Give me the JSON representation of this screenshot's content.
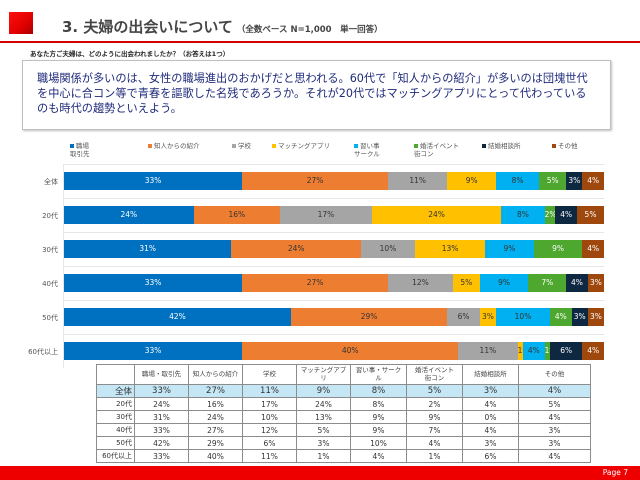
{
  "header": {
    "title": "3. 夫婦の出会いについて",
    "subtitle": "（全数ベース N=1,000　単一回答）",
    "question": "あなた方ご夫婦は、どのように出会われましたか？（お答えは1つ）"
  },
  "comment": {
    "text": "職場関係が多いのは、女性の職場進出のおかげだと思われる。60代で「知人からの紹介」が多いのは団塊世代を中心に合コン等で青春を謳歌した名残であろうか。それが20代ではマッチングアプリにとって代わっているのも時代の趨勢といえよう。"
  },
  "colors": {
    "accent_red": "#ee0000",
    "text_navy": "#1f2a7a"
  },
  "chart_data": {
    "type": "bar",
    "orientation": "horizontal",
    "stacked": true,
    "percent": true,
    "title": "",
    "xlabel": "",
    "ylabel": "",
    "xlim": [
      0,
      100
    ],
    "legend_position": "top",
    "categories": [
      "全体",
      "20代",
      "30代",
      "40代",
      "50代",
      "60代以上"
    ],
    "series": [
      {
        "name": "職場\n取引先",
        "table_name": "職場・取引先",
        "color": "#0070c0",
        "label_color": "#ffffff",
        "values": [
          33,
          24,
          31,
          33,
          42,
          33
        ]
      },
      {
        "name": "知人からの紹介",
        "table_name": "知人からの紹介",
        "color": "#ed7d31",
        "label_color": "#333333",
        "values": [
          27,
          16,
          24,
          27,
          29,
          40
        ]
      },
      {
        "name": "学校",
        "table_name": "学校",
        "color": "#a5a5a5",
        "label_color": "#333333",
        "values": [
          11,
          17,
          10,
          12,
          6,
          11
        ]
      },
      {
        "name": "マッチングアプリ",
        "table_name": "マッチングアプリ",
        "color": "#ffc000",
        "label_color": "#333333",
        "values": [
          9,
          24,
          13,
          5,
          3,
          1
        ]
      },
      {
        "name": "習い事\nサークル",
        "table_name": "習い事・サークル",
        "color": "#00b0f0",
        "label_color": "#333333",
        "values": [
          8,
          8,
          9,
          9,
          10,
          4
        ]
      },
      {
        "name": "婚活イベント\n街コン",
        "table_name": "婚活イベント\n街コン",
        "color": "#4ea72e",
        "label_color": "#ffffff",
        "values": [
          5,
          2,
          9,
          7,
          4,
          1
        ]
      },
      {
        "name": "結婚相談所",
        "table_name": "結婚相談所",
        "color": "#0e2841",
        "label_color": "#ffffff",
        "values": [
          3,
          4,
          0,
          4,
          3,
          6
        ]
      },
      {
        "name": "その他",
        "table_name": "その他",
        "color": "#9e480e",
        "label_color": "#ffffff",
        "values": [
          4,
          5,
          4,
          3,
          3,
          4
        ]
      }
    ]
  },
  "table": {
    "headers": [
      "",
      "職場・取引先",
      "知人からの紹介",
      "学校",
      "マッチングアプリ",
      "習い事・サークル",
      "婚活イベント\n街コン",
      "結婚相談所",
      "その他"
    ],
    "rows": [
      {
        "label": "全体",
        "cells": [
          "33%",
          "27%",
          "11%",
          "9%",
          "8%",
          "5%",
          "3%",
          "4%"
        ]
      },
      {
        "label": "20代",
        "cells": [
          "24%",
          "16%",
          "17%",
          "24%",
          "8%",
          "2%",
          "4%",
          "5%"
        ]
      },
      {
        "label": "30代",
        "cells": [
          "31%",
          "24%",
          "10%",
          "13%",
          "9%",
          "9%",
          "0%",
          "4%"
        ]
      },
      {
        "label": "40代",
        "cells": [
          "33%",
          "27%",
          "12%",
          "5%",
          "9%",
          "7%",
          "4%",
          "3%"
        ]
      },
      {
        "label": "50代",
        "cells": [
          "42%",
          "29%",
          "6%",
          "3%",
          "10%",
          "4%",
          "3%",
          "3%"
        ]
      },
      {
        "label": "60代以上",
        "cells": [
          "33%",
          "40%",
          "11%",
          "1%",
          "4%",
          "1%",
          "6%",
          "4%"
        ]
      }
    ]
  },
  "footer": {
    "page": "Page 7"
  }
}
